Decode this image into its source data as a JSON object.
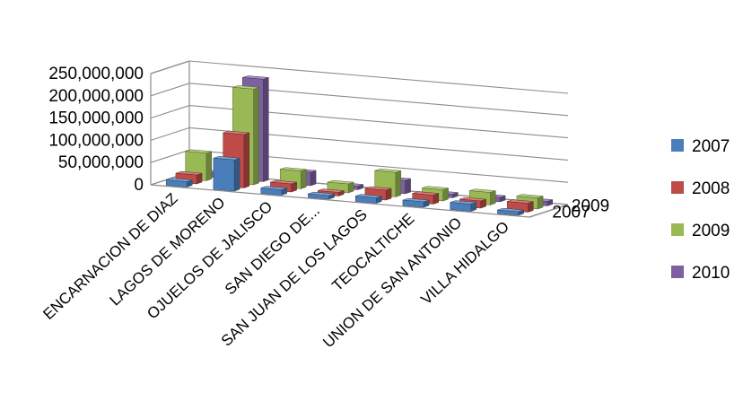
{
  "chart_data": {
    "type": "bar",
    "title": "",
    "xlabel": "",
    "ylabel": "",
    "ylim": [
      0,
      250000000
    ],
    "y_ticks": [
      "0",
      "50,000,000",
      "100,000,000",
      "150,000,000",
      "200,000,000",
      "250,000,000"
    ],
    "depth_tick_labels": [
      "2007",
      "2009"
    ],
    "categories": [
      "ENCARNACION DE DIAZ",
      "LAGOS DE MORENO",
      "OJUELOS DE JALISCO",
      "SAN DIEGO DE...",
      "SAN JUAN DE LOS LAGOS",
      "TEOCALTICHE",
      "UNION DE SAN ANTONIO",
      "VILLA HIDALGO"
    ],
    "series": [
      {
        "name": "2007",
        "color": "#4a7ebb",
        "values": [
          12000000,
          70000000,
          12000000,
          8000000,
          12000000,
          12000000,
          16000000,
          8000000
        ]
      },
      {
        "name": "2008",
        "color": "#be4b48",
        "values": [
          20000000,
          120000000,
          18000000,
          8000000,
          22000000,
          20000000,
          16000000,
          20000000
        ]
      },
      {
        "name": "2009",
        "color": "#98b954",
        "values": [
          62000000,
          215000000,
          40000000,
          20000000,
          55000000,
          25000000,
          28000000,
          25000000
        ]
      },
      {
        "name": "2010",
        "color": "#7d60a0",
        "values": [
          10000000,
          230000000,
          30000000,
          8000000,
          30000000,
          8000000,
          10000000,
          10000000
        ]
      }
    ],
    "grid": true,
    "legend_position": "right"
  }
}
